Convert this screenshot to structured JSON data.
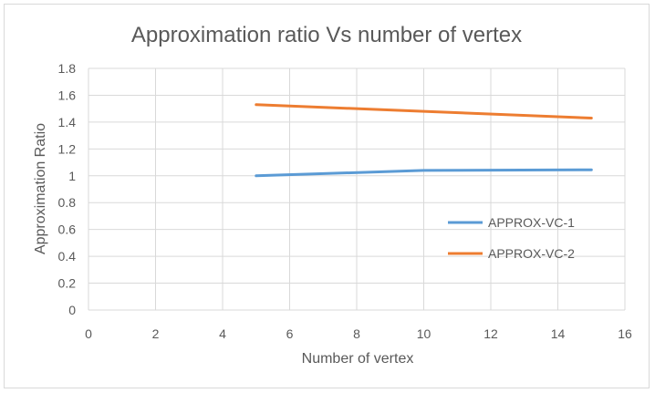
{
  "chart_data": {
    "type": "line",
    "title": "Approximation ratio Vs number of vertex",
    "xlabel": "Number of vertex",
    "ylabel": "Approximation Ratio",
    "xlim": [
      0,
      16
    ],
    "ylim": [
      0,
      1.8
    ],
    "x_ticks": [
      "0",
      "2",
      "4",
      "6",
      "8",
      "10",
      "12",
      "14",
      "16"
    ],
    "y_ticks": [
      "0",
      "0.2",
      "0.4",
      "0.6",
      "0.8",
      "1",
      "1.2",
      "1.4",
      "1.6",
      "1.8"
    ],
    "grid": true,
    "legend_position": "right",
    "series": [
      {
        "name": "APPROX-VC-1",
        "color": "#5b9bd5",
        "points": [
          [
            5,
            1.0
          ],
          [
            10,
            1.04
          ],
          [
            15,
            1.045
          ]
        ]
      },
      {
        "name": "APPROX-VC-2",
        "color": "#ed7d31",
        "points": [
          [
            5,
            1.53
          ],
          [
            10,
            1.48
          ],
          [
            15,
            1.43
          ]
        ]
      }
    ]
  }
}
